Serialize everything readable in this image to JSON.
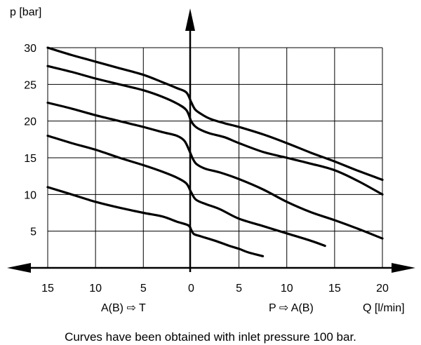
{
  "chart_data": {
    "type": "line",
    "ylabel": "p [bar]",
    "xlabel": "Q [l/min]",
    "left_direction_label": "A(B) ⇨ T",
    "right_direction_label": "P ⇨ A(B)",
    "caption": "Curves have been obtained with inlet pressure 100 bar.",
    "x_ticks": [
      {
        "value": -15,
        "label": "15"
      },
      {
        "value": -10,
        "label": "10"
      },
      {
        "value": -5,
        "label": "5"
      },
      {
        "value": 0,
        "label": "0"
      },
      {
        "value": 5,
        "label": "5"
      },
      {
        "value": 10,
        "label": "10"
      },
      {
        "value": 15,
        "label": "15"
      },
      {
        "value": 20,
        "label": "20"
      }
    ],
    "y_ticks": [
      5,
      10,
      15,
      20,
      25,
      30
    ],
    "xlim": [
      -15,
      20
    ],
    "ylim": [
      0,
      30
    ],
    "grid": true,
    "series": [
      {
        "points": [
          [
            -15,
            30
          ],
          [
            -12.5,
            29.0
          ],
          [
            -10,
            28.1
          ],
          [
            -7.5,
            27.2
          ],
          [
            -5,
            26.3
          ],
          [
            -3,
            25.3
          ],
          [
            -1.5,
            24.5
          ],
          [
            -0.5,
            23.9
          ],
          [
            0,
            22.6
          ],
          [
            0.4,
            21.6
          ],
          [
            1,
            21.0
          ],
          [
            2,
            20.3
          ],
          [
            3.5,
            19.7
          ],
          [
            5,
            19.2
          ],
          [
            7.5,
            18.2
          ],
          [
            10,
            17.0
          ],
          [
            12.5,
            15.7
          ],
          [
            15,
            14.5
          ],
          [
            17.5,
            13.2
          ],
          [
            20,
            12.0
          ]
        ]
      },
      {
        "points": [
          [
            -15,
            27.5
          ],
          [
            -12.5,
            26.7
          ],
          [
            -10,
            25.8
          ],
          [
            -7.5,
            25.0
          ],
          [
            -5,
            24.2
          ],
          [
            -3,
            23.3
          ],
          [
            -1.5,
            22.4
          ],
          [
            -0.5,
            21.5
          ],
          [
            0,
            20.0
          ],
          [
            0.4,
            19.3
          ],
          [
            1,
            18.8
          ],
          [
            2,
            18.3
          ],
          [
            3.5,
            17.8
          ],
          [
            5,
            17.0
          ],
          [
            7.5,
            15.8
          ],
          [
            10,
            15.0
          ],
          [
            12.5,
            14.2
          ],
          [
            15,
            13.3
          ],
          [
            17.5,
            11.8
          ],
          [
            20,
            10.0
          ]
        ]
      },
      {
        "points": [
          [
            -15,
            22.5
          ],
          [
            -12.5,
            21.7
          ],
          [
            -10,
            20.8
          ],
          [
            -7.5,
            20.0
          ],
          [
            -5,
            19.2
          ],
          [
            -3,
            18.5
          ],
          [
            -1.5,
            18.0
          ],
          [
            -0.7,
            17.3
          ],
          [
            -0.2,
            16.0
          ],
          [
            0.2,
            14.8
          ],
          [
            0.6,
            14.1
          ],
          [
            1.5,
            13.5
          ],
          [
            3,
            13.0
          ],
          [
            5,
            12.1
          ],
          [
            7.5,
            10.7
          ],
          [
            10,
            9.0
          ],
          [
            12.5,
            7.6
          ],
          [
            15,
            6.5
          ],
          [
            17.5,
            5.3
          ],
          [
            20,
            4.0
          ]
        ]
      },
      {
        "points": [
          [
            -15,
            18.0
          ],
          [
            -12.5,
            17.0
          ],
          [
            -10,
            16.1
          ],
          [
            -7.5,
            15.0
          ],
          [
            -5,
            14.0
          ],
          [
            -3,
            13.1
          ],
          [
            -1.5,
            12.3
          ],
          [
            -0.5,
            11.5
          ],
          [
            0,
            10.3
          ],
          [
            0.5,
            9.3
          ],
          [
            1.5,
            8.7
          ],
          [
            3,
            8.0
          ],
          [
            5,
            6.7
          ],
          [
            7.5,
            5.7
          ],
          [
            10,
            4.7
          ],
          [
            12.5,
            3.7
          ],
          [
            14,
            3.0
          ]
        ]
      },
      {
        "points": [
          [
            -15,
            11.0
          ],
          [
            -12.5,
            10.0
          ],
          [
            -10,
            9.0
          ],
          [
            -7.5,
            8.2
          ],
          [
            -5,
            7.5
          ],
          [
            -3,
            7.0
          ],
          [
            -1.5,
            6.3
          ],
          [
            -0.3,
            5.8
          ],
          [
            0,
            5.2
          ],
          [
            0.3,
            4.6
          ],
          [
            1,
            4.3
          ],
          [
            2.5,
            3.7
          ],
          [
            4,
            3.0
          ],
          [
            5,
            2.6
          ],
          [
            6,
            2.1
          ],
          [
            7.5,
            1.6
          ]
        ]
      }
    ]
  }
}
